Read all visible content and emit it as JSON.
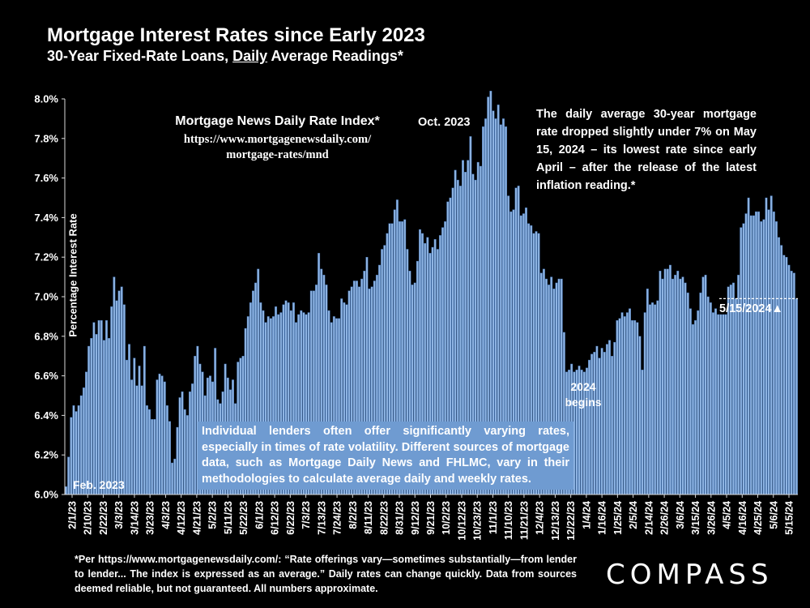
{
  "header": {
    "title": "Mortgage Interest Rates since Early 2023",
    "subtitle_pre": "30-Year Fixed-Rate Loans, ",
    "subtitle_em": "Daily",
    "subtitle_post": " Average Readings*"
  },
  "annotations": {
    "source_title": "Mortgage News Daily Rate Index*",
    "source_url_line1": "https://www.mortgagenewsdaily.com/",
    "source_url_line2": "mortgage-rates/mnd",
    "peak_label": "Oct. 2023",
    "callout": "The daily average 30-year mortgage rate dropped slightly under 7% on May 15, 2024 – its lowest rate since early April – after the release of the latest inflation reading.*",
    "year_begin_line1": "2024",
    "year_begin_line2": "begins",
    "start_label": "Feb. 2023",
    "latest_label": "5/15/2024",
    "latest_marker": "▲",
    "lenders_note": "Individual lenders often offer significantly varying rates, especially in times of rate volatility. Different sources of mortgage data, such as Mortgage Daily News and FHLMC, vary in their methodologies to calculate average daily and weekly rates."
  },
  "footnote": "*Per https://www.mortgagenewsdaily.com/: “Rate offerings vary—sometimes substantially—from lender to lender... The index is expressed as an average.” Daily rates can change quickly. Data from sources deemed reliable, but not guaranteed. All numbers approximate.",
  "brand": {
    "logo_text": "COMPASS"
  },
  "colors": {
    "bar": "#8eb4e3",
    "bar_edge": "#3e6fb0",
    "background": "#000000",
    "note_box": "#6f9bd1",
    "axis": "#d9d9d9"
  },
  "chart_data": {
    "type": "bar",
    "title": "Mortgage Interest Rates since Early 2023",
    "ylabel": "Percentage Interest Rate",
    "xlabel": "",
    "ylim": [
      6.0,
      8.0
    ],
    "yticks": [
      "6.0%",
      "6.2%",
      "6.4%",
      "6.6%",
      "6.8%",
      "7.0%",
      "7.2%",
      "7.4%",
      "7.6%",
      "7.8%",
      "8.0%"
    ],
    "ytick_values": [
      6.0,
      6.2,
      6.4,
      6.6,
      6.8,
      7.0,
      7.2,
      7.4,
      7.6,
      7.8,
      8.0
    ],
    "xticks": [
      "2/1/23",
      "2/10/23",
      "2/22/23",
      "3/3/23",
      "3/14/23",
      "3/23/23",
      "4/3/23",
      "4/12/23",
      "4/21/23",
      "5/2/23",
      "5/11/23",
      "5/22/23",
      "6/1/23",
      "6/12/23",
      "6/22/23",
      "7/3/23",
      "7/13/23",
      "7/24/23",
      "8/2/23",
      "8/11/23",
      "8/22/23",
      "8/31/23",
      "9/12/23",
      "9/21/23",
      "10/2/23",
      "10/12/23",
      "10/23/23",
      "11/1/23",
      "11/10/23",
      "11/21/23",
      "12/4/23",
      "12/13/23",
      "12/22/23",
      "1/4/24",
      "1/16/24",
      "1/25/24",
      "2/5/24",
      "2/14/24",
      "2/26/24",
      "3/6/24",
      "3/15/24",
      "3/26/24",
      "4/5/24",
      "4/16/24",
      "4/25/24",
      "5/6/24",
      "5/15/24"
    ],
    "grid": false,
    "values": [
      6.04,
      6.19,
      6.39,
      6.45,
      6.42,
      6.45,
      6.5,
      6.54,
      6.62,
      6.75,
      6.79,
      6.87,
      6.81,
      6.88,
      6.88,
      6.78,
      6.88,
      6.79,
      6.95,
      7.1,
      6.98,
      7.03,
      7.05,
      6.96,
      6.68,
      6.76,
      6.58,
      6.69,
      6.55,
      6.65,
      6.55,
      6.75,
      6.45,
      6.43,
      6.38,
      6.38,
      6.58,
      6.61,
      6.6,
      6.57,
      6.45,
      6.37,
      6.16,
      6.18,
      6.34,
      6.49,
      6.52,
      6.43,
      6.4,
      6.52,
      6.56,
      6.7,
      6.75,
      6.66,
      6.62,
      6.5,
      6.59,
      6.6,
      6.57,
      6.74,
      6.48,
      6.46,
      6.52,
      6.66,
      6.59,
      6.53,
      6.58,
      6.46,
      6.67,
      6.69,
      6.7,
      6.84,
      6.9,
      6.97,
      7.03,
      7.07,
      7.14,
      6.97,
      6.93,
      6.87,
      6.9,
      6.89,
      6.9,
      6.95,
      6.91,
      6.92,
      6.96,
      6.98,
      6.97,
      6.93,
      6.97,
      6.87,
      6.91,
      6.93,
      6.92,
      6.91,
      6.92,
      7.03,
      7.03,
      7.06,
      7.22,
      7.14,
      7.11,
      7.06,
      6.93,
      6.87,
      6.9,
      6.89,
      6.89,
      6.99,
      6.97,
      6.96,
      7.03,
      7.05,
      7.08,
      7.08,
      7.05,
      7.09,
      7.13,
      7.2,
      7.04,
      7.05,
      7.08,
      7.11,
      7.16,
      7.24,
      7.26,
      7.32,
      7.37,
      7.37,
      7.44,
      7.49,
      7.38,
      7.38,
      7.39,
      7.24,
      7.13,
      7.06,
      7.07,
      7.18,
      7.34,
      7.32,
      7.27,
      7.3,
      7.22,
      7.25,
      7.29,
      7.24,
      7.31,
      7.35,
      7.38,
      7.48,
      7.5,
      7.55,
      7.64,
      7.59,
      7.56,
      7.69,
      7.63,
      7.69,
      7.81,
      7.62,
      7.59,
      7.68,
      7.66,
      7.86,
      7.9,
      8.01,
      8.04,
      7.94,
      7.9,
      7.97,
      7.87,
      7.9,
      7.86,
      7.51,
      7.43,
      7.44,
      7.55,
      7.56,
      7.41,
      7.42,
      7.45,
      7.37,
      7.36,
      7.32,
      7.33,
      7.32,
      7.12,
      7.14,
      7.09,
      7.06,
      7.1,
      7.04,
      7.07,
      7.09,
      7.09,
      6.82,
      6.62,
      6.63,
      6.66,
      6.62,
      6.63,
      6.65,
      6.63,
      6.62,
      6.64,
      6.68,
      6.71,
      6.72,
      6.75,
      6.69,
      6.74,
      6.72,
      6.76,
      6.78,
      6.7,
      6.77,
      6.88,
      6.89,
      6.92,
      6.9,
      6.92,
      6.94,
      6.88,
      6.88,
      6.87,
      6.8,
      6.63,
      6.92,
      7.04,
      6.96,
      6.97,
      6.96,
      6.98,
      7.13,
      7.09,
      7.14,
      7.14,
      7.16,
      7.09,
      7.11,
      7.13,
      7.09,
      7.1,
      7.07,
      7.02,
      6.94,
      6.86,
      6.88,
      6.93,
      7.02,
      7.1,
      7.11,
      7.0,
      6.97,
      6.92,
      6.94,
      6.91,
      6.91,
      6.91,
      6.91,
      7.05,
      7.06,
      7.07,
      6.99,
      7.11,
      7.35,
      7.37,
      7.42,
      7.5,
      7.41,
      7.41,
      7.43,
      7.43,
      7.38,
      7.39,
      7.5,
      7.44,
      7.51,
      7.43,
      7.38,
      7.3,
      7.26,
      7.21,
      7.2,
      7.16,
      7.13,
      7.12,
      6.99
    ]
  }
}
